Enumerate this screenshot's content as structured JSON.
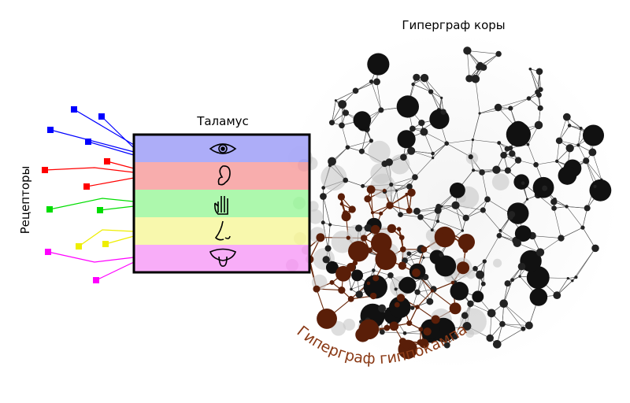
{
  "labels": {
    "cortex": "Гиперграф коры",
    "thalamus": "Таламус",
    "receptors": "Рецепторы",
    "hippocampus": "Гиперграф гиппокампа"
  }
}
